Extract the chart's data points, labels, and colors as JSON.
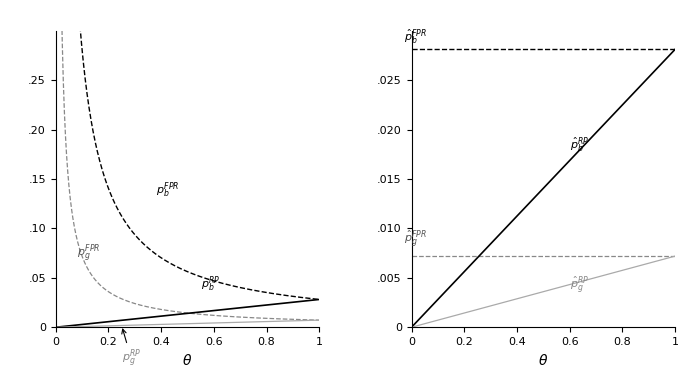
{
  "t": 0.5,
  "theta_min": 0.001,
  "theta_max": 1.0,
  "n_points": 1000,
  "left_ylim": [
    0,
    0.3
  ],
  "left_yticks": [
    0.0,
    0.05,
    0.1,
    0.15,
    0.2,
    0.25
  ],
  "left_ytick_labels": [
    "0",
    ".05",
    ".10",
    ".15",
    ".20",
    ".25"
  ],
  "right_ylim": [
    0,
    0.03
  ],
  "right_yticks": [
    0.0,
    0.005,
    0.01,
    0.015,
    0.02,
    0.025
  ],
  "right_ytick_labels": [
    "0",
    ".005",
    ".010",
    ".015",
    ".020",
    ".025"
  ],
  "xticks": [
    0.0,
    0.2,
    0.4,
    0.6,
    0.8,
    1.0
  ],
  "xtick_labels": [
    "0",
    "0.2",
    "0.4",
    "0.6",
    "0.8",
    "1"
  ],
  "xlabel": "\\theta",
  "p_b_FPR_hat": 0.028125,
  "p_g_FPR_hat": 0.0072,
  "background": "#ffffff",
  "line_color_dark": "#000000",
  "line_color_gray": "#808080",
  "line_color_lightgray": "#aaaaaa"
}
